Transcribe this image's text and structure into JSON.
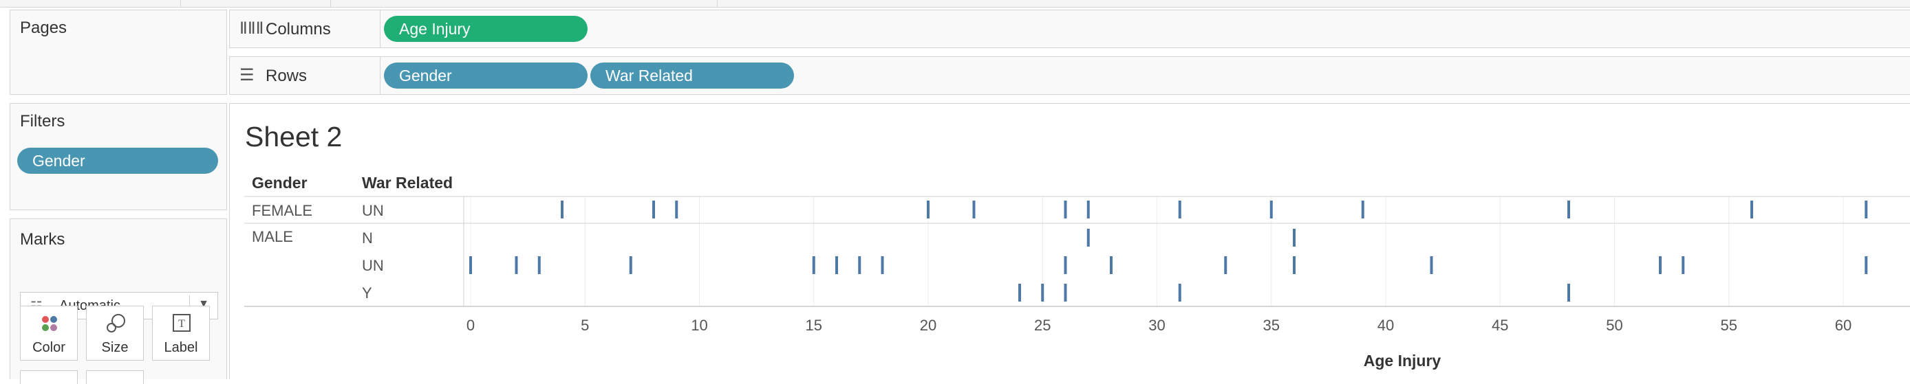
{
  "panes": {
    "pages_title": "Pages",
    "filters_title": "Filters",
    "filter_pills": [
      "Gender"
    ],
    "marks_title": "Marks",
    "mark_type": "Automatic",
    "mark_buttons": {
      "color": "Color",
      "size": "Size",
      "label": "Label"
    }
  },
  "shelves": {
    "columns_label": "Columns",
    "columns_pills": [
      "Age Injury"
    ],
    "rows_label": "Rows",
    "rows_pills": [
      "Gender",
      "War Related"
    ]
  },
  "colors": {
    "pill_blue": "#4996b2",
    "pill_green": "#1fae74",
    "mark": "#4e79a7"
  },
  "chart_data": {
    "type": "scatter",
    "title": "Sheet 2",
    "row_headers": [
      "Gender",
      "War Related"
    ],
    "xlabel": "Age Injury",
    "x_ticks": [
      0,
      5,
      10,
      15,
      20,
      25,
      30,
      35,
      40,
      45,
      50,
      55,
      60
    ],
    "xlim": [
      0,
      63
    ],
    "mark_shape": "tick",
    "rows": [
      {
        "gender": "FEMALE",
        "war_related": "UN",
        "values": [
          4,
          8,
          9,
          20,
          22,
          26,
          27,
          31,
          35,
          39,
          48,
          56,
          61
        ]
      },
      {
        "gender": "MALE",
        "war_related": "N",
        "values": [
          27,
          36
        ]
      },
      {
        "gender": "",
        "war_related": "UN",
        "values": [
          0,
          2,
          3,
          7,
          15,
          16,
          17,
          18,
          26,
          28,
          33,
          36,
          42,
          52,
          53,
          61
        ]
      },
      {
        "gender": "",
        "war_related": "Y",
        "values": [
          24,
          25,
          26,
          31,
          48
        ]
      }
    ]
  }
}
